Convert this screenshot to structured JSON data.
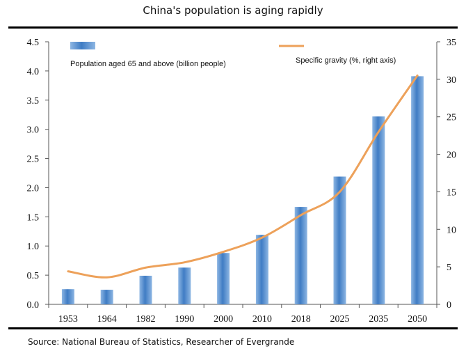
{
  "title": "China's population is aging rapidly",
  "source": "Source: National Bureau of Statistics, Researcher of Evergrande",
  "chart_data": {
    "type": "bar",
    "categories": [
      "1953",
      "1964",
      "1982",
      "1990",
      "2000",
      "2010",
      "2018",
      "2025",
      "2035",
      "2050"
    ],
    "series": [
      {
        "name": "Population aged 65 and above (billion people)",
        "type": "bar",
        "axis": "left",
        "values": [
          0.26,
          0.25,
          0.49,
          0.63,
          0.88,
          1.19,
          1.67,
          2.19,
          3.22,
          3.91
        ]
      },
      {
        "name": "Specific gravity (%, right axis)",
        "type": "line",
        "axis": "right",
        "values": [
          4.4,
          3.6,
          4.9,
          5.6,
          7.0,
          8.9,
          11.9,
          15.0,
          23.0,
          30.5
        ]
      }
    ],
    "y_left": {
      "ticks": [
        "0.0",
        "0.5",
        "1.0",
        "1.5",
        "2.0",
        "2.5",
        "3.0",
        "3.5",
        "4.0",
        "4.5"
      ],
      "lim": [
        0,
        4.5
      ]
    },
    "y_right": {
      "ticks": [
        "0",
        "5",
        "10",
        "15",
        "20",
        "25",
        "30",
        "35"
      ],
      "lim": [
        0,
        35
      ]
    },
    "legend_position": "top",
    "grid": false,
    "colors": {
      "bar": "#3d78c0",
      "bar_light": "#a9c8ea",
      "line": "#eda15a"
    }
  }
}
